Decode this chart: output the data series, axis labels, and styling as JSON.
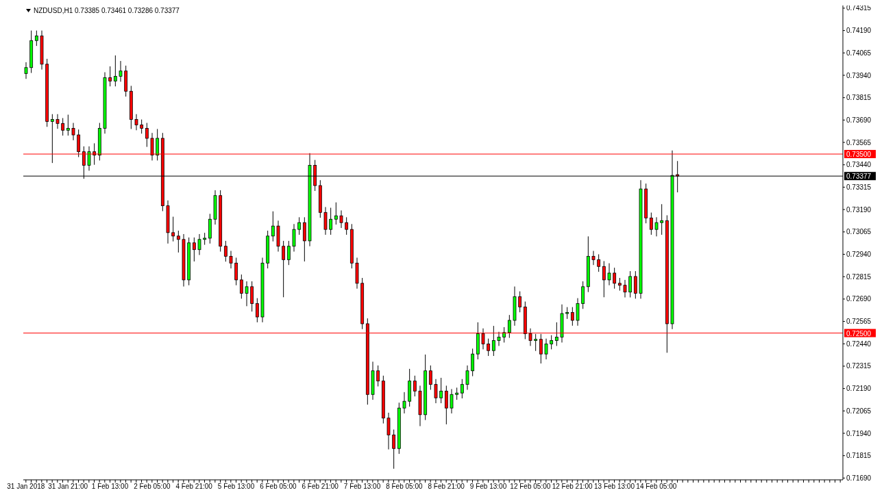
{
  "chart_data": {
    "type": "candlestick",
    "title": "NZDUSD,H1 0.73385 0.73461 0.73286 0.73377",
    "categories": [
      "31 Jan 2018",
      null,
      null,
      null,
      null,
      null,
      null,
      null,
      "31 Jan 21:00",
      null,
      null,
      null,
      null,
      null,
      null,
      null,
      "1 Feb 13:00",
      null,
      null,
      null,
      null,
      null,
      null,
      null,
      "2 Feb 05:00",
      null,
      null,
      null,
      null,
      null,
      null,
      null,
      "4 Feb 21:00",
      null,
      null,
      null,
      null,
      null,
      null,
      null,
      "5 Feb 13:00",
      null,
      null,
      null,
      null,
      null,
      null,
      null,
      "6 Feb 05:00",
      null,
      null,
      null,
      null,
      null,
      null,
      null,
      "6 Feb 21:00",
      null,
      null,
      null,
      null,
      null,
      null,
      null,
      "7 Feb 13:00",
      null,
      null,
      null,
      null,
      null,
      null,
      null,
      "8 Feb 05:00",
      null,
      null,
      null,
      null,
      null,
      null,
      null,
      "8 Feb 21:00",
      null,
      null,
      null,
      null,
      null,
      null,
      null,
      "9 Feb 13:00",
      null,
      null,
      null,
      null,
      null,
      null,
      null,
      "12 Feb 05:00",
      null,
      null,
      null,
      null,
      null,
      null,
      null,
      "12 Feb 21:00",
      null,
      null,
      null,
      null,
      null,
      null,
      null,
      "13 Feb 13:00",
      null,
      null,
      null,
      null,
      null,
      null,
      null,
      "14 Feb 05:00",
      null,
      null,
      null,
      null,
      null,
      null,
      null,
      null,
      null,
      null,
      null,
      null,
      null,
      null,
      null,
      null,
      null,
      null,
      null,
      null,
      null,
      null,
      null,
      null,
      null,
      null,
      null,
      null,
      null,
      null,
      null,
      null,
      null,
      null,
      null
    ],
    "ohlc": [
      [
        0.7395,
        0.74013,
        0.7392,
        0.73983
      ],
      [
        0.73983,
        0.7419,
        0.73953,
        0.74134
      ],
      [
        0.74134,
        0.7419,
        0.74104,
        0.7416
      ],
      [
        0.7416,
        0.7419,
        0.73972,
        0.74002
      ],
      [
        0.74002,
        0.74032,
        0.73652,
        0.73682
      ],
      [
        0.73682,
        0.73723,
        0.7345,
        0.73693
      ],
      [
        0.73693,
        0.73723,
        0.73641,
        0.73671
      ],
      [
        0.73671,
        0.73701,
        0.73603,
        0.73633
      ],
      [
        0.73633,
        0.7372,
        0.73603,
        0.73644
      ],
      [
        0.73644,
        0.73674,
        0.73577,
        0.73607
      ],
      [
        0.73607,
        0.73637,
        0.73483,
        0.73513
      ],
      [
        0.73513,
        0.73543,
        0.73362,
        0.73437
      ],
      [
        0.73437,
        0.73543,
        0.73407,
        0.73513
      ],
      [
        0.73513,
        0.7356,
        0.7344,
        0.73494
      ],
      [
        0.73494,
        0.73674,
        0.73464,
        0.73644
      ],
      [
        0.73644,
        0.73957,
        0.73614,
        0.73927
      ],
      [
        0.73927,
        0.7399,
        0.73878,
        0.73908
      ],
      [
        0.73908,
        0.74051,
        0.73878,
        0.73934
      ],
      [
        0.73934,
        0.7402,
        0.73904,
        0.73964
      ],
      [
        0.73964,
        0.73994,
        0.73821,
        0.73851
      ],
      [
        0.73851,
        0.73881,
        0.7364,
        0.73693
      ],
      [
        0.73693,
        0.73723,
        0.73633,
        0.73663
      ],
      [
        0.73663,
        0.73693,
        0.73614,
        0.73644
      ],
      [
        0.73644,
        0.73674,
        0.7354,
        0.73588
      ],
      [
        0.73588,
        0.73618,
        0.73464,
        0.73494
      ],
      [
        0.73494,
        0.7364,
        0.73464,
        0.73588
      ],
      [
        0.73588,
        0.73618,
        0.73181,
        0.73211
      ],
      [
        0.73211,
        0.73241,
        0.73,
        0.73061
      ],
      [
        0.73061,
        0.7315,
        0.73012,
        0.73042
      ],
      [
        0.73042,
        0.73072,
        0.7295,
        0.73023
      ],
      [
        0.73023,
        0.73053,
        0.7276,
        0.72797
      ],
      [
        0.72797,
        0.73034,
        0.72767,
        0.73004
      ],
      [
        0.73004,
        0.73034,
        0.729,
        0.72966
      ],
      [
        0.72966,
        0.73053,
        0.72936,
        0.73023
      ],
      [
        0.73023,
        0.7306,
        0.72993,
        0.7303
      ],
      [
        0.7303,
        0.73166,
        0.73,
        0.73136
      ],
      [
        0.73136,
        0.73298,
        0.73106,
        0.73268
      ],
      [
        0.73268,
        0.73298,
        0.72955,
        0.72985
      ],
      [
        0.72985,
        0.73015,
        0.72899,
        0.72929
      ],
      [
        0.72929,
        0.72959,
        0.72861,
        0.72891
      ],
      [
        0.72891,
        0.72921,
        0.72767,
        0.72797
      ],
      [
        0.72797,
        0.72827,
        0.72692,
        0.72722
      ],
      [
        0.72722,
        0.72789,
        0.7265,
        0.72759
      ],
      [
        0.72759,
        0.72789,
        0.7262,
        0.72665
      ],
      [
        0.72665,
        0.72695,
        0.7256,
        0.7259
      ],
      [
        0.7259,
        0.72921,
        0.7256,
        0.72891
      ],
      [
        0.72891,
        0.73072,
        0.72861,
        0.73042
      ],
      [
        0.73042,
        0.7318,
        0.73012,
        0.73098
      ],
      [
        0.73098,
        0.73128,
        0.72955,
        0.72985
      ],
      [
        0.72985,
        0.73015,
        0.727,
        0.7291
      ],
      [
        0.7291,
        0.73015,
        0.7288,
        0.72985
      ],
      [
        0.72985,
        0.73109,
        0.72955,
        0.73079
      ],
      [
        0.73079,
        0.73147,
        0.73049,
        0.73117
      ],
      [
        0.73117,
        0.73147,
        0.729,
        0.73015
      ],
      [
        0.73015,
        0.73505,
        0.72985,
        0.73437
      ],
      [
        0.73437,
        0.73467,
        0.73294,
        0.73324
      ],
      [
        0.73324,
        0.73354,
        0.73144,
        0.73174
      ],
      [
        0.73174,
        0.73204,
        0.73049,
        0.73079
      ],
      [
        0.73079,
        0.732,
        0.73049,
        0.73136
      ],
      [
        0.73136,
        0.7323,
        0.73106,
        0.73155
      ],
      [
        0.73155,
        0.73185,
        0.73087,
        0.73117
      ],
      [
        0.73117,
        0.73147,
        0.73049,
        0.73079
      ],
      [
        0.73079,
        0.73109,
        0.72861,
        0.72891
      ],
      [
        0.72891,
        0.72921,
        0.72748,
        0.72778
      ],
      [
        0.72778,
        0.72808,
        0.72522,
        0.72552
      ],
      [
        0.72552,
        0.72582,
        0.721,
        0.72157
      ],
      [
        0.72157,
        0.7234,
        0.72127,
        0.72289
      ],
      [
        0.72289,
        0.72319,
        0.72202,
        0.72232
      ],
      [
        0.72232,
        0.72262,
        0.71995,
        0.72025
      ],
      [
        0.72025,
        0.72055,
        0.7185,
        0.71931
      ],
      [
        0.71931,
        0.71961,
        0.71742,
        0.71855
      ],
      [
        0.71855,
        0.72111,
        0.71825,
        0.72081
      ],
      [
        0.72081,
        0.7217,
        0.72051,
        0.72119
      ],
      [
        0.72119,
        0.723,
        0.72089,
        0.72232
      ],
      [
        0.72232,
        0.72262,
        0.72146,
        0.72176
      ],
      [
        0.72176,
        0.72206,
        0.7198,
        0.72044
      ],
      [
        0.72044,
        0.7238,
        0.72014,
        0.72289
      ],
      [
        0.72289,
        0.72319,
        0.72183,
        0.72213
      ],
      [
        0.72213,
        0.72243,
        0.72108,
        0.72138
      ],
      [
        0.72138,
        0.7225,
        0.72108,
        0.72176
      ],
      [
        0.72176,
        0.72206,
        0.7199,
        0.72081
      ],
      [
        0.72081,
        0.72187,
        0.72051,
        0.72157
      ],
      [
        0.72157,
        0.72195,
        0.72127,
        0.72165
      ],
      [
        0.72165,
        0.72243,
        0.72135,
        0.72213
      ],
      [
        0.72213,
        0.72319,
        0.72183,
        0.72289
      ],
      [
        0.72289,
        0.72413,
        0.72259,
        0.72383
      ],
      [
        0.72383,
        0.7256,
        0.72353,
        0.72496
      ],
      [
        0.72496,
        0.72526,
        0.72409,
        0.72439
      ],
      [
        0.72439,
        0.72469,
        0.72372,
        0.72402
      ],
      [
        0.72402,
        0.7254,
        0.72372,
        0.72458
      ],
      [
        0.72458,
        0.72507,
        0.72428,
        0.72477
      ],
      [
        0.72477,
        0.72533,
        0.72447,
        0.72503
      ],
      [
        0.72503,
        0.72601,
        0.72473,
        0.72571
      ],
      [
        0.72571,
        0.7276,
        0.72541,
        0.72703
      ],
      [
        0.72703,
        0.72733,
        0.72616,
        0.72646
      ],
      [
        0.72646,
        0.72676,
        0.72466,
        0.72496
      ],
      [
        0.72496,
        0.72526,
        0.72428,
        0.72458
      ],
      [
        0.72458,
        0.72495,
        0.724,
        0.72465
      ],
      [
        0.72465,
        0.72495,
        0.7233,
        0.72383
      ],
      [
        0.72383,
        0.72469,
        0.72353,
        0.72439
      ],
      [
        0.72439,
        0.72488,
        0.72409,
        0.72458
      ],
      [
        0.72458,
        0.7256,
        0.72428,
        0.72477
      ],
      [
        0.72477,
        0.7266,
        0.72447,
        0.72609
      ],
      [
        0.72609,
        0.72645,
        0.72579,
        0.72615
      ],
      [
        0.72615,
        0.72645,
        0.72541,
        0.72571
      ],
      [
        0.72571,
        0.72695,
        0.72541,
        0.72665
      ],
      [
        0.72665,
        0.72789,
        0.72635,
        0.72759
      ],
      [
        0.72759,
        0.7304,
        0.72729,
        0.72929
      ],
      [
        0.72929,
        0.72959,
        0.7288,
        0.7291
      ],
      [
        0.7291,
        0.7294,
        0.72842,
        0.72872
      ],
      [
        0.72872,
        0.72902,
        0.727,
        0.72797
      ],
      [
        0.72797,
        0.7289,
        0.72767,
        0.72835
      ],
      [
        0.72835,
        0.72865,
        0.72748,
        0.72778
      ],
      [
        0.72778,
        0.72808,
        0.72737,
        0.72767
      ],
      [
        0.72767,
        0.72797,
        0.72699,
        0.72729
      ],
      [
        0.72729,
        0.72846,
        0.72699,
        0.72816
      ],
      [
        0.72816,
        0.72846,
        0.72692,
        0.72722
      ],
      [
        0.72722,
        0.73354,
        0.72692,
        0.73305
      ],
      [
        0.73305,
        0.73335,
        0.73113,
        0.73143
      ],
      [
        0.73143,
        0.73173,
        0.73049,
        0.73079
      ],
      [
        0.73079,
        0.73147,
        0.7304,
        0.73117
      ],
      [
        0.73117,
        0.7322,
        0.73049,
        0.73128
      ],
      [
        0.73128,
        0.73158,
        0.7239,
        0.72552
      ],
      [
        0.72552,
        0.7352,
        0.72522,
        0.73381
      ],
      [
        0.73385,
        0.73461,
        0.73286,
        0.73377
      ],
      null,
      null,
      null,
      null,
      null,
      null,
      null,
      null,
      null,
      null,
      null,
      null,
      null,
      null,
      null,
      null,
      null,
      null,
      null,
      null,
      null,
      null,
      null,
      null,
      null,
      null,
      null,
      null,
      null,
      null,
      null
    ],
    "colors": [
      "#00ff00",
      "#00ff00",
      "#00ff00",
      "#ff0000",
      "#ff0000",
      "#00ff00",
      "#ff0000",
      "#ff0000",
      "#00ff00",
      "#ff0000",
      "#ff0000",
      "#ff0000",
      "#00ff00",
      "#ff0000",
      "#00ff00",
      "#00ff00",
      "#ff0000",
      "#00ff00",
      "#00ff00",
      "#ff0000",
      "#ff0000",
      "#ff0000",
      "#ff0000",
      "#ff0000",
      "#ff0000",
      "#00ff00",
      "#ff0000",
      "#ff0000",
      "#ff0000",
      "#ff0000",
      "#ff0000",
      "#00ff00",
      "#ff0000",
      "#00ff00",
      "#00ff00",
      "#00ff00",
      "#00ff00",
      "#ff0000",
      "#ff0000",
      "#ff0000",
      "#ff0000",
      "#ff0000",
      "#00ff00",
      "#ff0000",
      "#ff0000",
      "#00ff00",
      "#00ff00",
      "#00ff00",
      "#ff0000",
      "#ff0000",
      "#00ff00",
      "#00ff00",
      "#00ff00",
      "#ff0000",
      "#00ff00",
      "#ff0000",
      "#ff0000",
      "#ff0000",
      "#00ff00",
      "#00ff00",
      "#ff0000",
      "#ff0000",
      "#ff0000",
      "#ff0000",
      "#ff0000",
      "#ff0000",
      "#00ff00",
      "#ff0000",
      "#ff0000",
      "#ff0000",
      "#ff0000",
      "#00ff00",
      "#00ff00",
      "#00ff00",
      "#ff0000",
      "#ff0000",
      "#00ff00",
      "#ff0000",
      "#ff0000",
      "#00ff00",
      "#ff0000",
      "#00ff00",
      "#00ff00",
      "#00ff00",
      "#00ff00",
      "#00ff00",
      "#00ff00",
      "#ff0000",
      "#ff0000",
      "#00ff00",
      "#00ff00",
      "#00ff00",
      "#00ff00",
      "#00ff00",
      "#ff0000",
      "#ff0000",
      "#ff0000",
      "#00ff00",
      "#ff0000",
      "#00ff00",
      "#00ff00",
      "#00ff00",
      "#00ff00",
      "#00ff00",
      "#ff0000",
      "#00ff00",
      "#00ff00",
      "#00ff00",
      "#ff0000",
      "#ff0000",
      "#ff0000",
      "#00ff00",
      "#ff0000",
      "#ff0000",
      "#ff0000",
      "#00ff00",
      "#ff0000",
      "#00ff00",
      "#ff0000",
      "#ff0000",
      "#00ff00",
      "#00ff00",
      "#ff0000",
      "#00ff00",
      "#ff0000",
      null,
      null,
      null,
      null,
      null,
      null,
      null,
      null,
      null,
      null,
      null,
      null,
      null,
      null,
      null,
      null,
      null,
      null,
      null,
      null,
      null,
      null,
      null,
      null,
      null,
      null,
      null,
      null,
      null,
      null,
      null
    ],
    "ylim": [
      0.7168,
      0.7433
    ],
    "yticks": [
      {
        "value": 0.7169,
        "label": "0.71690"
      },
      0.71815,
      {
        "value": 0.7194,
        "label": "0.71940"
      },
      0.72065,
      {
        "value": 0.7219,
        "label": "0.72190"
      },
      0.72315,
      {
        "value": 0.7244,
        "label": "0.72440"
      },
      0.72565,
      {
        "value": 0.7269,
        "label": "0.72690"
      },
      0.72815,
      {
        "value": 0.7294,
        "label": "0.72940"
      },
      0.73065,
      {
        "value": 0.7319,
        "label": "0.73190"
      },
      0.73315,
      {
        "value": 0.7344,
        "label": "0.73440"
      },
      0.73565,
      {
        "value": 0.7369,
        "label": "0.73690"
      },
      0.73815,
      {
        "value": 0.7394,
        "label": "0.73940"
      },
      0.74065,
      {
        "value": 0.7419,
        "label": "0.74190"
      },
      0.74315
    ],
    "ref_lines": [
      {
        "axis": "y",
        "value": 0.735,
        "label": "0.73500",
        "color": "#ff0000"
      },
      {
        "axis": "y",
        "value": 0.725,
        "label": "0.72500",
        "color": "#ff0000"
      },
      {
        "axis": "y",
        "value": 0.73377,
        "label": "0.73377",
        "color": "#000000"
      }
    ]
  }
}
